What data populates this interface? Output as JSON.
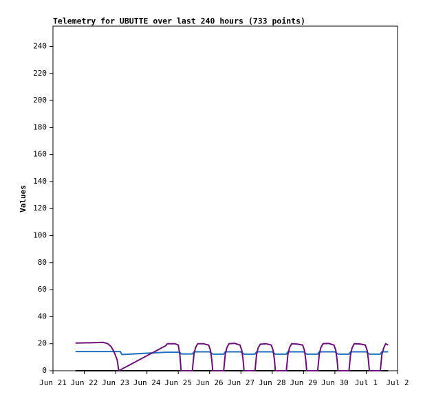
{
  "chart_data": {
    "type": "line",
    "title": "Telemetry for UBUTTE over last 240 hours (733 points)",
    "y_label": "Values",
    "xlim": [
      0,
      11
    ],
    "ylim": [
      0,
      255
    ],
    "xticks": [
      {
        "value": 0,
        "label": "Jun 21"
      },
      {
        "value": 1,
        "label": "Jun 22"
      },
      {
        "value": 2,
        "label": "Jun 23"
      },
      {
        "value": 3,
        "label": "Jun 24"
      },
      {
        "value": 4,
        "label": "Jun 25"
      },
      {
        "value": 5,
        "label": "Jun 26"
      },
      {
        "value": 6,
        "label": "Jun 27"
      },
      {
        "value": 7,
        "label": "Jun 28"
      },
      {
        "value": 8,
        "label": "Jun 29"
      },
      {
        "value": 9,
        "label": "Jun 30"
      },
      {
        "value": 10,
        "label": "Jul 1"
      },
      {
        "value": 11,
        "label": "Jul 2"
      }
    ],
    "yticks": [
      0,
      20,
      40,
      60,
      80,
      100,
      120,
      140,
      160,
      180,
      200,
      220,
      240
    ],
    "series": [
      {
        "color": "#000000",
        "x": [
          0.72,
          10.7
        ],
        "values": [
          0,
          0
        ]
      },
      {
        "color": "#1f6fbf",
        "x": [
          0.72,
          2.15,
          2.2,
          3.6,
          4.05,
          4.1,
          4.45,
          4.5,
          5.0,
          5.1,
          5.45,
          5.5,
          6.0,
          6.1,
          6.45,
          6.5,
          7.0,
          7.1,
          7.45,
          7.5,
          8.0,
          8.1,
          8.45,
          8.5,
          9.0,
          9.1,
          9.45,
          9.5,
          10.0,
          10.1,
          10.45,
          10.5,
          10.7
        ],
        "values": [
          14.2,
          14.2,
          12,
          13.7,
          13.7,
          12.4,
          12.4,
          14,
          14,
          12.3,
          12.3,
          14,
          14,
          12.3,
          12.3,
          14,
          14,
          12.3,
          12.3,
          14,
          14,
          12.3,
          12.3,
          14,
          14,
          12.3,
          12.3,
          14,
          14,
          12.3,
          12.3,
          14,
          14
        ]
      },
      {
        "color": "#6a0f7a",
        "x": [
          0.72,
          1.2,
          1.6,
          1.75,
          1.85,
          1.95,
          2.05,
          2.1,
          3.6,
          3.65,
          3.9,
          4.0,
          4.05,
          4.09,
          4.45,
          4.5,
          4.55,
          4.62,
          4.8,
          4.97,
          5.03,
          5.07,
          5.1,
          5.45,
          5.5,
          5.55,
          5.62,
          5.8,
          5.97,
          6.03,
          6.07,
          6.1,
          6.45,
          6.5,
          6.55,
          6.62,
          6.8,
          6.97,
          7.03,
          7.07,
          7.1,
          7.45,
          7.5,
          7.55,
          7.62,
          7.8,
          7.97,
          8.03,
          8.07,
          8.1,
          8.45,
          8.5,
          8.55,
          8.62,
          8.8,
          8.97,
          9.03,
          9.07,
          9.1,
          9.45,
          9.5,
          9.55,
          9.62,
          9.8,
          9.97,
          10.03,
          10.07,
          10.1,
          10.45,
          10.5,
          10.56,
          10.62,
          10.7
        ],
        "values": [
          20.5,
          20.7,
          21,
          20,
          18,
          14,
          8,
          0,
          18.5,
          20,
          20,
          19,
          12,
          0,
          0,
          12,
          17,
          20,
          20,
          19,
          15,
          8,
          0,
          0,
          12,
          17,
          20,
          20.3,
          19,
          15,
          8,
          0,
          0,
          12,
          17,
          19.6,
          20,
          19,
          15,
          8,
          0,
          0,
          12,
          17,
          20,
          19.7,
          19,
          15,
          8,
          0,
          0,
          12,
          17,
          20,
          20.2,
          19,
          15,
          8,
          0,
          0,
          12,
          17,
          20,
          19.8,
          19,
          15,
          8,
          0,
          0,
          12,
          17,
          20,
          19
        ]
      }
    ]
  }
}
